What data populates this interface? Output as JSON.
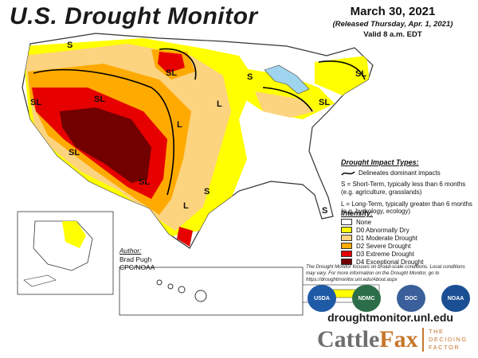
{
  "header": {
    "title": "U.S. Drought Monitor",
    "date": "March 30, 2021",
    "released": "(Released Thursday, Apr. 1, 2021)",
    "valid": "Valid 8 a.m. EDT"
  },
  "impact_legend": {
    "heading": "Drought Impact Types:",
    "dominant": "Delineates dominant impacts",
    "short_term": "S = Short-Term, typically less than 6 months (e.g. agriculture, grasslands)",
    "long_term": "L = Long-Term, typically greater than 6 months (e.g. hydrology, ecology)"
  },
  "intensity_legend": {
    "heading": "Intensity:",
    "items": [
      {
        "label": "None",
        "color": "#ffffff"
      },
      {
        "label": "D0 Abnormally Dry",
        "color": "#ffff00"
      },
      {
        "label": "D1 Moderate Drought",
        "color": "#fcd37f"
      },
      {
        "label": "D2 Severe Drought",
        "color": "#ffaa00"
      },
      {
        "label": "D3 Extreme Drought",
        "color": "#e60000"
      },
      {
        "label": "D4 Exceptional Drought",
        "color": "#730000"
      }
    ]
  },
  "author": {
    "heading": "Author:",
    "name": "Brad Pugh",
    "org": "CPC/NOAA"
  },
  "note": "The Drought Monitor focuses on broad-scale conditions. Local conditions may vary. For more information on the Drought Monitor, go to https://droughtmonitor.unl.edu/About.aspx",
  "logos": [
    {
      "label": "USDA",
      "color": "#1f5aa6"
    },
    {
      "label": "NDMC",
      "color": "#2c6e49"
    },
    {
      "label": "DOC",
      "color": "#3a5f9a"
    },
    {
      "label": "NOAA",
      "color": "#1b4f93"
    }
  ],
  "url": "droughtmonitor.unl.edu",
  "brand": {
    "part1": "Cattle",
    "part2": "Fax",
    "tagline": [
      "THE",
      "DECIDING",
      "FACTOR"
    ]
  },
  "map_labels": [
    "S",
    "SL",
    "SL",
    "L",
    "SL",
    "SL",
    "SL",
    "L",
    "SL",
    "L",
    "S",
    "SL",
    "S",
    "L",
    "S",
    "S"
  ]
}
